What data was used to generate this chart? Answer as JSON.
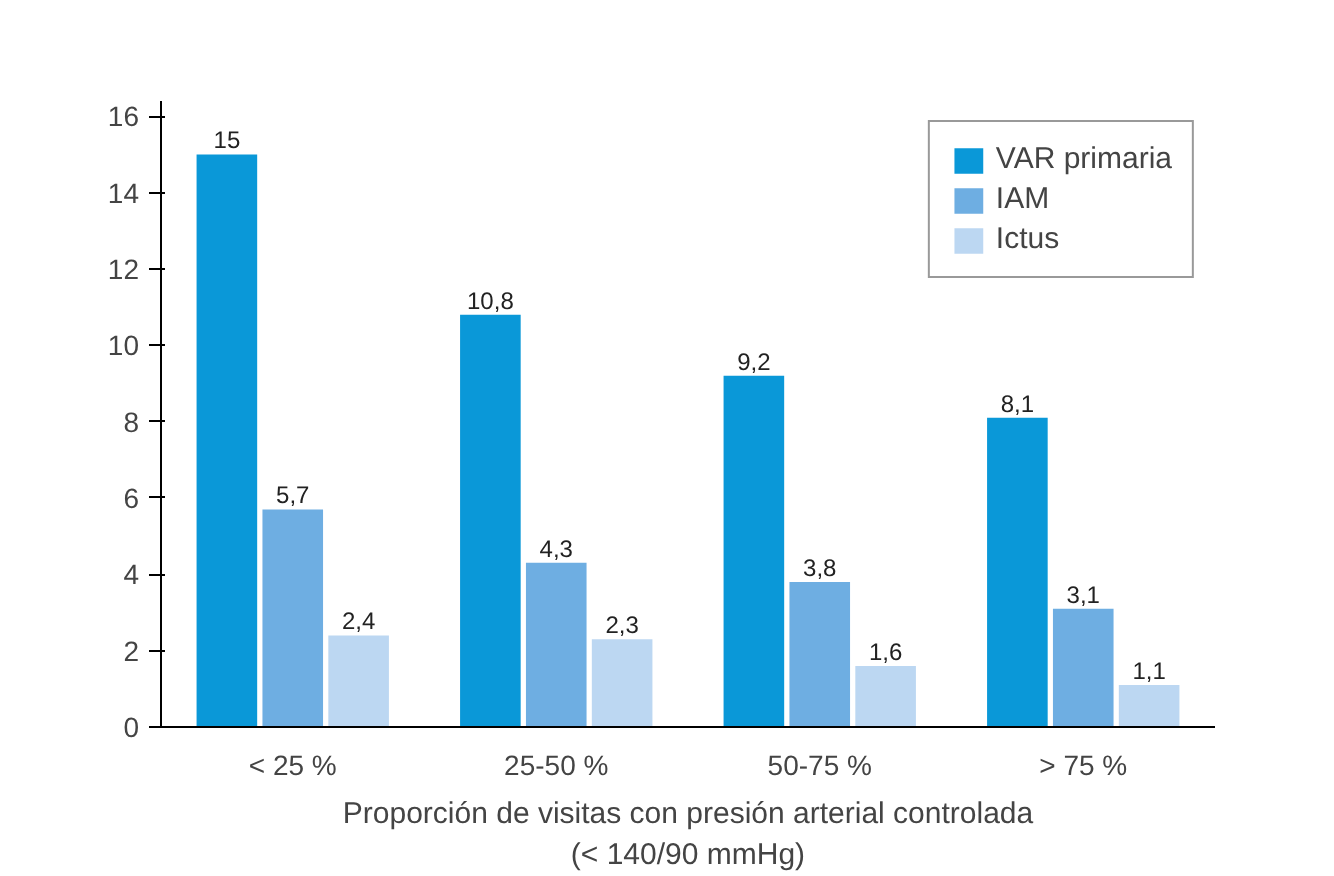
{
  "chart_data": {
    "type": "bar",
    "xlabel": "Proporción de visitas con presión arterial controlada\n(< 140/90 mmHg)",
    "categories": [
      "< 25 %",
      "25-50 %",
      "50-75 %",
      "> 75 %"
    ],
    "series": [
      {
        "name": "VAR primaria",
        "color": "#0a98d8",
        "values": [
          15,
          10.8,
          9.2,
          8.1
        ],
        "value_labels": [
          "15",
          "10,8",
          "9,2",
          "8,1"
        ]
      },
      {
        "name": "IAM",
        "color": "#6eaee2",
        "values": [
          5.7,
          4.3,
          3.8,
          3.1
        ],
        "value_labels": [
          "5,7",
          "4,3",
          "3,8",
          "3,1"
        ]
      },
      {
        "name": "Ictus",
        "color": "#bcd7f2",
        "values": [
          2.4,
          2.3,
          1.6,
          1.1
        ],
        "value_labels": [
          "2,4",
          "2,3",
          "1,6",
          "1,1"
        ]
      }
    ],
    "ylim": [
      0,
      16.4
    ],
    "yticks": [
      0,
      2,
      4,
      6,
      8,
      10,
      12,
      14,
      16
    ],
    "grid": false,
    "legend": "top right"
  }
}
